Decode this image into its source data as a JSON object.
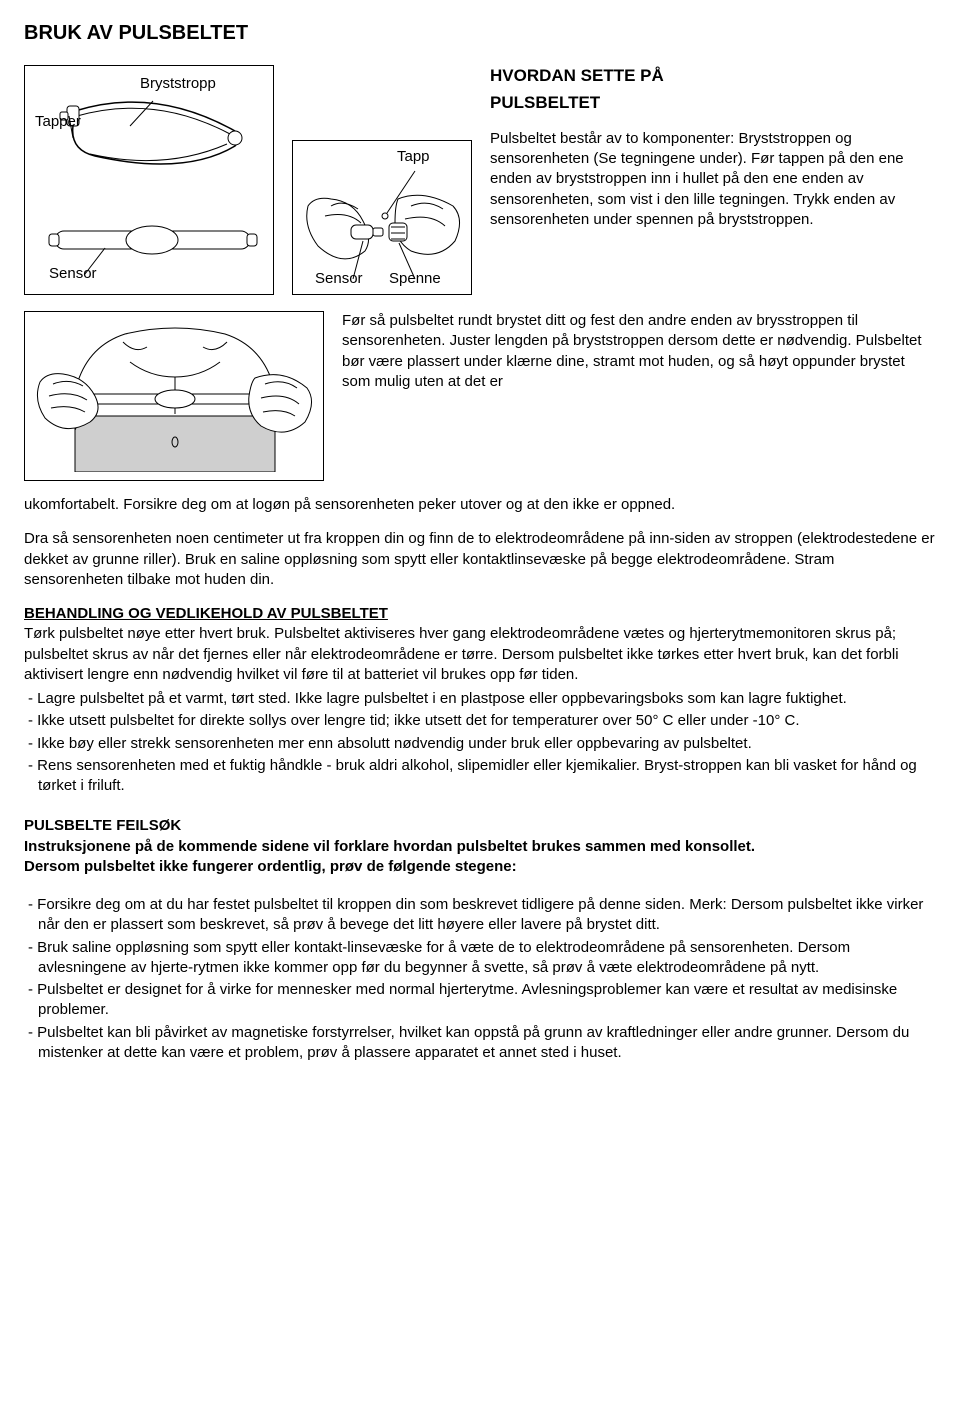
{
  "title": "BRUK AV PULSBELTET",
  "labels": {
    "tapper": "Tapper",
    "bryststropp": "Bryststropp",
    "sensor": "Sensor",
    "tapp": "Tapp",
    "spenne": "Spenne"
  },
  "section_head1": "HVORDAN SETTE PÅ",
  "section_head2": "PULSBELTET",
  "intro_para": "Pulsbeltet består av to komponenter: Bryststroppen og sensorenheten (Se tegningene under). Før tappen på den ene enden av bryststroppen inn i hullet på den ene enden av sensorenheten, som vist i den lille tegningen. Trykk enden av sensorenheten under spennen på bryststroppen.",
  "mid_para": "Før så pulsbeltet rundt brystet ditt og fest den andre enden av brysstroppen til sensorenheten. Juster lengden på bryststroppen dersom dette er nødvendig. Pulsbeltet bør  være plassert under klærne dine, stramt mot huden, og så høyt oppunder brystet som mulig uten at det er",
  "mid_tail": "ukomfortabelt. Forsikre deg om at logøn på sensorenheten peker utover og at den ikke er oppned.",
  "big_para": "Dra så sensorenheten noen centimeter ut fra kroppen din og finn de to elektrodeområdene på inn-siden av stroppen (elektrodestedene er dekket av grunne riller). Bruk en saline oppløsning som spytt eller kontaktlinsevæske på begge elektrodeområdene. Stram sensorenheten tilbake mot huden din.",
  "maint_head": "BEHANDLING OG VEDLIKEHOLD AV PULSBELTET",
  "maint_para": "Tørk pulsbeltet nøye etter hvert bruk. Pulsbeltet aktiviseres hver gang elektrodeområdene vætes og hjerterytmemonitoren skrus på; pulsbeltet skrus av når det fjernes eller når elektrodeområdene er tørre. Dersom pulsbeltet ikke tørkes etter hvert bruk, kan det forbli aktivisert lengre enn nødvendig hvilket vil føre til at batteriet vil brukes opp før tiden.",
  "maint_bullets": [
    "- Lagre pulsbeltet på et varmt, tørt sted. Ikke lagre pulsbeltet i en plastpose eller oppbevaringsboks som kan lagre fuktighet.",
    "- Ikke utsett pulsbeltet for direkte sollys over lengre tid; ikke utsett det for temperaturer over 50° C eller under -10° C.",
    "- Ikke bøy eller strekk sensorenheten mer enn absolutt nødvendig under bruk eller oppbevaring av pulsbeltet.",
    "- Rens sensorenheten med et fuktig håndkle - bruk aldri alkohol, slipemidler eller kjemikalier. Bryst-stroppen kan bli vasket for hånd og tørket i friluft."
  ],
  "ts_head": "PULSBELTE FEILSØK",
  "ts_intro1": "Instruksjonene på de kommende sidene vil forklare hvordan pulsbeltet brukes sammen med konsollet.",
  "ts_intro2": "Dersom pulsbeltet ikke fungerer ordentlig, prøv de følgende stegene:",
  "ts_bullets": [
    "-  Forsikre deg om at du har festet pulsbeltet til kroppen din som beskrevet tidligere på denne siden. Merk: Dersom pulsbeltet ikke virker når den er plassert som beskrevet, så prøv å bevege det litt høyere eller lavere på brystet ditt.",
    "-  Bruk saline oppløsning som spytt eller kontakt-linsevæske for å væte de to elektrodeområdene på sensorenheten. Dersom avlesningene av hjerte-rytmen ikke kommer opp før du begynner å svette, så prøv å væte elektrodeområdene på nytt.",
    "-  Pulsbeltet er designet for å virke for mennesker med normal hjerterytme. Avlesningsproblemer kan være et resultat av medisinske problemer.",
    "-  Pulsbeltet kan bli påvirket av magnetiske forstyrrelser, hvilket kan oppstå på grunn av kraftledninger eller andre grunner. Dersom du mistenker at dette kan være et problem, prøv å plassere apparatet et annet sted i huset."
  ]
}
